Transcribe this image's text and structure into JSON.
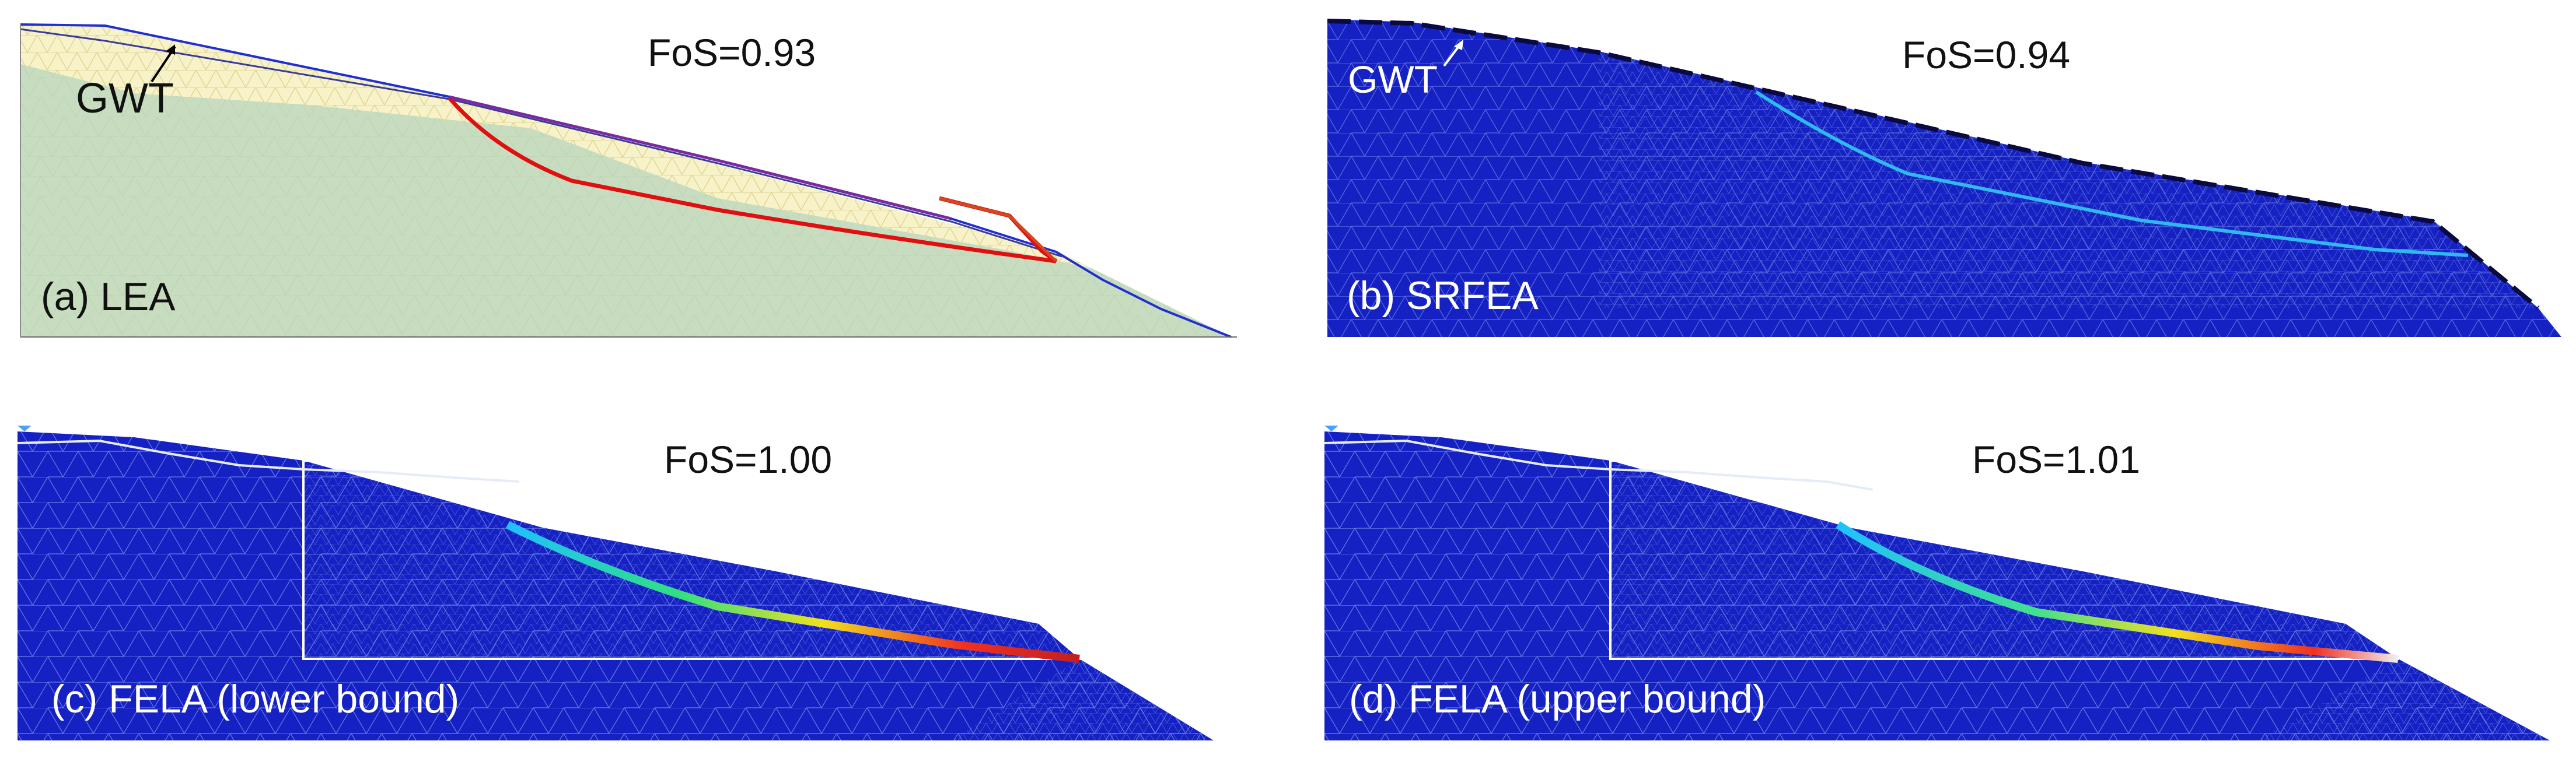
{
  "figure": {
    "panels": [
      {
        "id": "a",
        "label": "(a) LEA",
        "fos": "FoS=0.93",
        "gwt_label": "GWT"
      },
      {
        "id": "b",
        "label": "(b) SRFEA",
        "fos": "FoS=0.94",
        "gwt_label": "GWT"
      },
      {
        "id": "c",
        "label": "(c) FELA (lower bound)",
        "fos": "FoS=1.00"
      },
      {
        "id": "d",
        "label": "(d) FELA (upper bound)",
        "fos": "FoS=1.01"
      }
    ]
  },
  "colors": {
    "soil_lower": "#c8dcc0",
    "soil_upper": "#f8f2c8",
    "mesh_light": "#e6dca0",
    "slip_surface": "#e01010",
    "slope_surface": "#2030d0",
    "fe_background": "#1521c2",
    "fe_mesh": "#6a7ee8",
    "water_line": "#d8e0f0",
    "srfea_band": "#30b8f0"
  }
}
